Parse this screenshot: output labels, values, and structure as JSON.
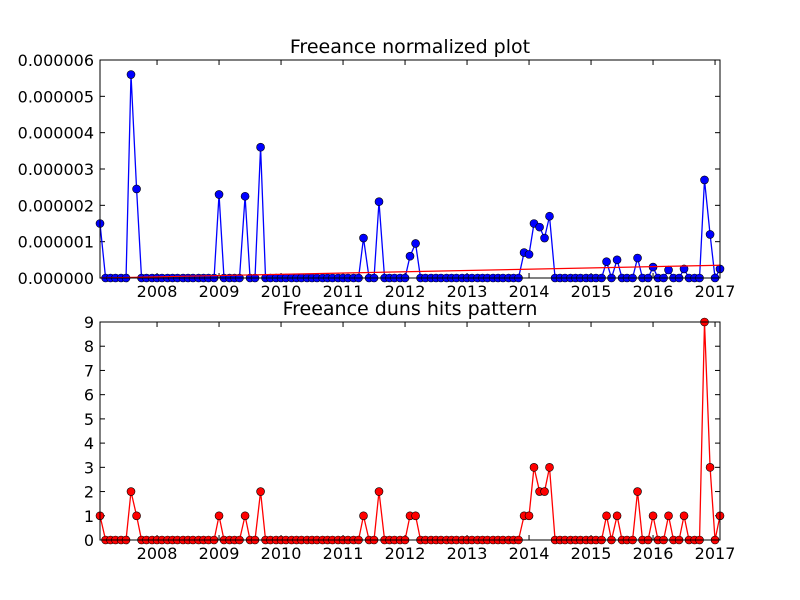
{
  "chart_data": [
    {
      "type": "line",
      "title": "Freeance normalized plot",
      "xlabel": "",
      "ylabel": "",
      "x_range": [
        2007.08,
        2017.08
      ],
      "ylim": [
        0,
        6e-06
      ],
      "x_ticks": [
        2008,
        2009,
        2010,
        2011,
        2012,
        2013,
        2014,
        2015,
        2016,
        2017
      ],
      "x_tick_labels": [
        "2008",
        "2009",
        "2010",
        "2011",
        "2012",
        "2013",
        "2014",
        "2015",
        "2016",
        "2017"
      ],
      "y_ticks": [
        0,
        1e-06,
        2e-06,
        3e-06,
        4e-06,
        5e-06,
        6e-06
      ],
      "y_tick_labels": [
        "0.000000",
        "0.000001",
        "0.000002",
        "0.000003",
        "0.000004",
        "0.000005",
        "0.000006"
      ],
      "grid": false,
      "series": [
        {
          "color": "#0000ff",
          "marker": "circle",
          "points": [
            [
              2007.08,
              1.5e-06
            ],
            [
              2007.17,
              0
            ],
            [
              2007.25,
              0
            ],
            [
              2007.33,
              0
            ],
            [
              2007.42,
              0
            ],
            [
              2007.5,
              0
            ],
            [
              2007.58,
              5.6e-06
            ],
            [
              2007.67,
              2.45e-06
            ],
            [
              2007.75,
              0
            ],
            [
              2007.83,
              0
            ],
            [
              2007.92,
              0
            ],
            [
              2008.0,
              0
            ],
            [
              2008.08,
              0
            ],
            [
              2008.17,
              0
            ],
            [
              2008.25,
              0
            ],
            [
              2008.33,
              0
            ],
            [
              2008.42,
              0
            ],
            [
              2008.5,
              0
            ],
            [
              2008.58,
              0
            ],
            [
              2008.67,
              0
            ],
            [
              2008.75,
              0
            ],
            [
              2008.83,
              0
            ],
            [
              2008.92,
              0
            ],
            [
              2009.0,
              2.3e-06
            ],
            [
              2009.08,
              0
            ],
            [
              2009.17,
              0
            ],
            [
              2009.25,
              0
            ],
            [
              2009.33,
              0
            ],
            [
              2009.42,
              2.25e-06
            ],
            [
              2009.5,
              0
            ],
            [
              2009.58,
              0
            ],
            [
              2009.67,
              3.6e-06
            ],
            [
              2009.75,
              0
            ],
            [
              2009.83,
              0
            ],
            [
              2009.92,
              0
            ],
            [
              2010.0,
              0
            ],
            [
              2010.08,
              0
            ],
            [
              2010.17,
              0
            ],
            [
              2010.25,
              0
            ],
            [
              2010.33,
              0
            ],
            [
              2010.42,
              0
            ],
            [
              2010.5,
              0
            ],
            [
              2010.58,
              0
            ],
            [
              2010.67,
              0
            ],
            [
              2010.75,
              0
            ],
            [
              2010.83,
              0
            ],
            [
              2010.92,
              0
            ],
            [
              2011.0,
              0
            ],
            [
              2011.08,
              0
            ],
            [
              2011.17,
              0
            ],
            [
              2011.25,
              0
            ],
            [
              2011.33,
              1.1e-06
            ],
            [
              2011.42,
              0
            ],
            [
              2011.5,
              0
            ],
            [
              2011.58,
              2.1e-06
            ],
            [
              2011.67,
              0
            ],
            [
              2011.75,
              0
            ],
            [
              2011.83,
              0
            ],
            [
              2011.92,
              0
            ],
            [
              2012.0,
              0
            ],
            [
              2012.08,
              6e-07
            ],
            [
              2012.17,
              9.5e-07
            ],
            [
              2012.25,
              0
            ],
            [
              2012.33,
              0
            ],
            [
              2012.42,
              0
            ],
            [
              2012.5,
              0
            ],
            [
              2012.58,
              0
            ],
            [
              2012.67,
              0
            ],
            [
              2012.75,
              0
            ],
            [
              2012.83,
              0
            ],
            [
              2012.92,
              0
            ],
            [
              2013.0,
              0
            ],
            [
              2013.08,
              0
            ],
            [
              2013.17,
              0
            ],
            [
              2013.25,
              0
            ],
            [
              2013.33,
              0
            ],
            [
              2013.42,
              0
            ],
            [
              2013.5,
              0
            ],
            [
              2013.58,
              0
            ],
            [
              2013.67,
              0
            ],
            [
              2013.75,
              0
            ],
            [
              2013.83,
              0
            ],
            [
              2013.92,
              7e-07
            ],
            [
              2014.0,
              6.5e-07
            ],
            [
              2014.08,
              1.5e-06
            ],
            [
              2014.17,
              1.4e-06
            ],
            [
              2014.25,
              1.1e-06
            ],
            [
              2014.33,
              1.7e-06
            ],
            [
              2014.42,
              0
            ],
            [
              2014.5,
              0
            ],
            [
              2014.58,
              0
            ],
            [
              2014.67,
              0
            ],
            [
              2014.75,
              0
            ],
            [
              2014.83,
              0
            ],
            [
              2014.92,
              0
            ],
            [
              2015.0,
              0
            ],
            [
              2015.08,
              0
            ],
            [
              2015.17,
              0
            ],
            [
              2015.25,
              4.5e-07
            ],
            [
              2015.33,
              0
            ],
            [
              2015.42,
              5e-07
            ],
            [
              2015.5,
              0
            ],
            [
              2015.58,
              0
            ],
            [
              2015.67,
              0
            ],
            [
              2015.75,
              5.5e-07
            ],
            [
              2015.83,
              0
            ],
            [
              2015.92,
              0
            ],
            [
              2016.0,
              3e-07
            ],
            [
              2016.08,
              0
            ],
            [
              2016.17,
              0
            ],
            [
              2016.25,
              2.2e-07
            ],
            [
              2016.33,
              0
            ],
            [
              2016.42,
              0
            ],
            [
              2016.5,
              2.5e-07
            ],
            [
              2016.58,
              0
            ],
            [
              2016.67,
              0
            ],
            [
              2016.75,
              0
            ],
            [
              2016.83,
              2.7e-06
            ],
            [
              2016.92,
              1.2e-06
            ],
            [
              2017.0,
              0
            ],
            [
              2017.08,
              2.5e-07
            ]
          ]
        }
      ],
      "trend_line": {
        "color": "#ff0000",
        "x": [
          2007.08,
          2017.08
        ],
        "y": [
          0,
          3.5e-07
        ]
      }
    },
    {
      "type": "line",
      "title": "Freeance duns hits pattern",
      "xlabel": "",
      "ylabel": "",
      "x_range": [
        2007.08,
        2017.08
      ],
      "ylim": [
        0,
        9
      ],
      "x_ticks": [
        2008,
        2009,
        2010,
        2011,
        2012,
        2013,
        2014,
        2015,
        2016,
        2017
      ],
      "x_tick_labels": [
        "2008",
        "2009",
        "2010",
        "2011",
        "2012",
        "2013",
        "2014",
        "2015",
        "2016",
        "2017"
      ],
      "y_ticks": [
        0,
        1,
        2,
        3,
        4,
        5,
        6,
        7,
        8,
        9
      ],
      "y_tick_labels": [
        "0",
        "1",
        "2",
        "3",
        "4",
        "5",
        "6",
        "7",
        "8",
        "9"
      ],
      "grid": false,
      "series": [
        {
          "color": "#ff0000",
          "marker": "circle",
          "points": [
            [
              2007.08,
              1
            ],
            [
              2007.17,
              0
            ],
            [
              2007.25,
              0
            ],
            [
              2007.33,
              0
            ],
            [
              2007.42,
              0
            ],
            [
              2007.5,
              0
            ],
            [
              2007.58,
              2
            ],
            [
              2007.67,
              1
            ],
            [
              2007.75,
              0
            ],
            [
              2007.83,
              0
            ],
            [
              2007.92,
              0
            ],
            [
              2008.0,
              0
            ],
            [
              2008.08,
              0
            ],
            [
              2008.17,
              0
            ],
            [
              2008.25,
              0
            ],
            [
              2008.33,
              0
            ],
            [
              2008.42,
              0
            ],
            [
              2008.5,
              0
            ],
            [
              2008.58,
              0
            ],
            [
              2008.67,
              0
            ],
            [
              2008.75,
              0
            ],
            [
              2008.83,
              0
            ],
            [
              2008.92,
              0
            ],
            [
              2009.0,
              1
            ],
            [
              2009.08,
              0
            ],
            [
              2009.17,
              0
            ],
            [
              2009.25,
              0
            ],
            [
              2009.33,
              0
            ],
            [
              2009.42,
              1
            ],
            [
              2009.5,
              0
            ],
            [
              2009.58,
              0
            ],
            [
              2009.67,
              2
            ],
            [
              2009.75,
              0
            ],
            [
              2009.83,
              0
            ],
            [
              2009.92,
              0
            ],
            [
              2010.0,
              0
            ],
            [
              2010.08,
              0
            ],
            [
              2010.17,
              0
            ],
            [
              2010.25,
              0
            ],
            [
              2010.33,
              0
            ],
            [
              2010.42,
              0
            ],
            [
              2010.5,
              0
            ],
            [
              2010.58,
              0
            ],
            [
              2010.67,
              0
            ],
            [
              2010.75,
              0
            ],
            [
              2010.83,
              0
            ],
            [
              2010.92,
              0
            ],
            [
              2011.0,
              0
            ],
            [
              2011.08,
              0
            ],
            [
              2011.17,
              0
            ],
            [
              2011.25,
              0
            ],
            [
              2011.33,
              1
            ],
            [
              2011.42,
              0
            ],
            [
              2011.5,
              0
            ],
            [
              2011.58,
              2
            ],
            [
              2011.67,
              0
            ],
            [
              2011.75,
              0
            ],
            [
              2011.83,
              0
            ],
            [
              2011.92,
              0
            ],
            [
              2012.0,
              0
            ],
            [
              2012.08,
              1
            ],
            [
              2012.17,
              1
            ],
            [
              2012.25,
              0
            ],
            [
              2012.33,
              0
            ],
            [
              2012.42,
              0
            ],
            [
              2012.5,
              0
            ],
            [
              2012.58,
              0
            ],
            [
              2012.67,
              0
            ],
            [
              2012.75,
              0
            ],
            [
              2012.83,
              0
            ],
            [
              2012.92,
              0
            ],
            [
              2013.0,
              0
            ],
            [
              2013.08,
              0
            ],
            [
              2013.17,
              0
            ],
            [
              2013.25,
              0
            ],
            [
              2013.33,
              0
            ],
            [
              2013.42,
              0
            ],
            [
              2013.5,
              0
            ],
            [
              2013.58,
              0
            ],
            [
              2013.67,
              0
            ],
            [
              2013.75,
              0
            ],
            [
              2013.83,
              0
            ],
            [
              2013.92,
              1
            ],
            [
              2014.0,
              1
            ],
            [
              2014.08,
              3
            ],
            [
              2014.17,
              2
            ],
            [
              2014.25,
              2
            ],
            [
              2014.33,
              3
            ],
            [
              2014.42,
              0
            ],
            [
              2014.5,
              0
            ],
            [
              2014.58,
              0
            ],
            [
              2014.67,
              0
            ],
            [
              2014.75,
              0
            ],
            [
              2014.83,
              0
            ],
            [
              2014.92,
              0
            ],
            [
              2015.0,
              0
            ],
            [
              2015.08,
              0
            ],
            [
              2015.17,
              0
            ],
            [
              2015.25,
              1
            ],
            [
              2015.33,
              0
            ],
            [
              2015.42,
              1
            ],
            [
              2015.5,
              0
            ],
            [
              2015.58,
              0
            ],
            [
              2015.67,
              0
            ],
            [
              2015.75,
              2
            ],
            [
              2015.83,
              0
            ],
            [
              2015.92,
              0
            ],
            [
              2016.0,
              1
            ],
            [
              2016.08,
              0
            ],
            [
              2016.17,
              0
            ],
            [
              2016.25,
              1
            ],
            [
              2016.33,
              0
            ],
            [
              2016.42,
              0
            ],
            [
              2016.5,
              1
            ],
            [
              2016.58,
              0
            ],
            [
              2016.67,
              0
            ],
            [
              2016.75,
              0
            ],
            [
              2016.83,
              9
            ],
            [
              2016.92,
              3
            ],
            [
              2017.0,
              0
            ],
            [
              2017.08,
              1
            ]
          ]
        }
      ]
    }
  ]
}
